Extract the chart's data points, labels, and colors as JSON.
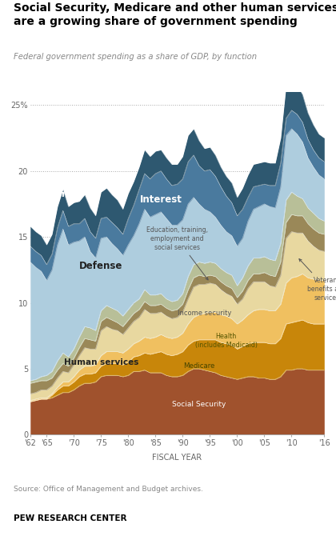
{
  "title": "Social Security, Medicare and other human services\nare a growing share of government spending",
  "subtitle": "Federal government spending as a share of GDP, by function",
  "source": "Source: Office of Management and Budget archives.",
  "footer": "PEW RESEARCH CENTER",
  "xlabel": "FISCAL YEAR",
  "background_color": "#ffffff",
  "years": [
    1962,
    1963,
    1964,
    1965,
    1966,
    1967,
    1968,
    1969,
    1970,
    1971,
    1972,
    1973,
    1974,
    1975,
    1976,
    1977,
    1978,
    1979,
    1980,
    1981,
    1982,
    1983,
    1984,
    1985,
    1986,
    1987,
    1988,
    1989,
    1990,
    1991,
    1992,
    1993,
    1994,
    1995,
    1996,
    1997,
    1998,
    1999,
    2000,
    2001,
    2002,
    2003,
    2004,
    2005,
    2006,
    2007,
    2008,
    2009,
    2010,
    2011,
    2012,
    2013,
    2014,
    2015,
    2016
  ],
  "social_security": [
    2.5,
    2.6,
    2.7,
    2.7,
    2.8,
    3.0,
    3.2,
    3.2,
    3.4,
    3.7,
    3.9,
    3.9,
    4.0,
    4.4,
    4.5,
    4.5,
    4.5,
    4.4,
    4.5,
    4.8,
    4.8,
    4.9,
    4.7,
    4.7,
    4.7,
    4.5,
    4.4,
    4.4,
    4.5,
    4.8,
    5.0,
    5.0,
    4.9,
    4.8,
    4.7,
    4.5,
    4.4,
    4.3,
    4.2,
    4.3,
    4.4,
    4.4,
    4.3,
    4.3,
    4.2,
    4.2,
    4.4,
    4.9,
    4.9,
    5.0,
    5.0,
    4.9,
    4.9,
    4.9,
    4.9
  ],
  "medicare": [
    0.0,
    0.0,
    0.0,
    0.0,
    0.2,
    0.4,
    0.5,
    0.5,
    0.6,
    0.7,
    0.7,
    0.7,
    0.7,
    0.8,
    0.9,
    0.9,
    0.9,
    0.9,
    1.0,
    1.1,
    1.2,
    1.3,
    1.4,
    1.5,
    1.6,
    1.6,
    1.6,
    1.7,
    1.8,
    2.0,
    2.1,
    2.2,
    2.3,
    2.4,
    2.5,
    2.5,
    2.5,
    2.5,
    2.3,
    2.4,
    2.5,
    2.6,
    2.7,
    2.7,
    2.7,
    2.7,
    2.9,
    3.5,
    3.6,
    3.6,
    3.7,
    3.6,
    3.5,
    3.5,
    3.5
  ],
  "health": [
    0.1,
    0.1,
    0.1,
    0.1,
    0.1,
    0.2,
    0.3,
    0.3,
    0.4,
    0.5,
    0.6,
    0.6,
    0.6,
    0.8,
    0.9,
    0.9,
    0.9,
    0.9,
    1.0,
    1.0,
    1.1,
    1.2,
    1.2,
    1.2,
    1.3,
    1.3,
    1.3,
    1.3,
    1.4,
    1.6,
    1.8,
    1.9,
    2.0,
    2.1,
    2.1,
    2.1,
    2.1,
    2.0,
    1.9,
    2.0,
    2.2,
    2.4,
    2.5,
    2.5,
    2.5,
    2.5,
    2.6,
    3.1,
    3.4,
    3.4,
    3.5,
    3.4,
    3.4,
    3.3,
    3.3
  ],
  "income_security": [
    0.5,
    0.5,
    0.6,
    0.6,
    0.6,
    0.7,
    0.8,
    0.7,
    0.9,
    1.1,
    1.4,
    1.3,
    1.2,
    1.9,
    1.9,
    1.7,
    1.6,
    1.4,
    1.6,
    1.7,
    1.8,
    2.1,
    1.9,
    1.8,
    1.7,
    1.6,
    1.5,
    1.5,
    1.6,
    1.9,
    2.3,
    2.3,
    2.2,
    2.2,
    2.1,
    1.9,
    1.7,
    1.7,
    1.5,
    1.6,
    2.0,
    2.2,
    2.1,
    2.1,
    1.9,
    1.8,
    2.2,
    3.4,
    3.5,
    3.3,
    3.1,
    2.8,
    2.5,
    2.3,
    2.2
  ],
  "veterans": [
    0.8,
    0.8,
    0.7,
    0.7,
    0.6,
    0.6,
    0.6,
    0.5,
    0.5,
    0.6,
    0.7,
    0.7,
    0.6,
    0.7,
    0.7,
    0.7,
    0.6,
    0.6,
    0.6,
    0.6,
    0.6,
    0.6,
    0.6,
    0.6,
    0.6,
    0.6,
    0.6,
    0.6,
    0.6,
    0.7,
    0.7,
    0.7,
    0.6,
    0.6,
    0.6,
    0.6,
    0.6,
    0.6,
    0.5,
    0.6,
    0.6,
    0.6,
    0.6,
    0.7,
    0.8,
    0.8,
    1.0,
    1.2,
    1.3,
    1.3,
    1.3,
    1.3,
    1.3,
    1.3,
    1.3
  ],
  "education": [
    0.2,
    0.2,
    0.3,
    0.4,
    0.5,
    0.7,
    0.8,
    0.7,
    0.7,
    0.8,
    0.9,
    0.9,
    0.8,
    0.8,
    0.9,
    0.9,
    0.9,
    0.8,
    0.8,
    0.8,
    0.8,
    0.9,
    0.8,
    0.8,
    0.8,
    0.7,
    0.7,
    0.7,
    0.8,
    1.0,
    1.0,
    1.0,
    1.0,
    1.0,
    1.0,
    1.0,
    1.0,
    1.0,
    0.9,
    1.0,
    1.1,
    1.2,
    1.2,
    1.2,
    1.2,
    1.2,
    1.4,
    1.7,
    1.7,
    1.5,
    1.3,
    1.2,
    1.2,
    1.1,
    1.0
  ],
  "defense": [
    9.0,
    8.5,
    8.0,
    7.2,
    7.7,
    8.8,
    9.4,
    8.5,
    8.1,
    7.3,
    6.8,
    5.8,
    5.5,
    5.5,
    5.2,
    4.9,
    4.7,
    4.6,
    4.9,
    5.1,
    5.7,
    6.1,
    5.9,
    6.1,
    6.2,
    6.1,
    5.8,
    5.7,
    5.6,
    5.5,
    5.1,
    4.4,
    4.1,
    3.8,
    3.5,
    3.3,
    3.1,
    3.0,
    3.0,
    3.0,
    3.4,
    3.7,
    3.9,
    4.0,
    4.0,
    4.0,
    4.3,
    4.9,
    4.8,
    4.7,
    4.3,
    3.8,
    3.5,
    3.3,
    3.2
  ],
  "interest": [
    1.2,
    1.2,
    1.2,
    1.2,
    1.2,
    1.3,
    1.4,
    1.4,
    1.4,
    1.3,
    1.4,
    1.5,
    1.5,
    1.5,
    1.5,
    1.6,
    1.6,
    1.6,
    2.0,
    2.3,
    2.6,
    2.7,
    2.9,
    3.1,
    3.1,
    3.0,
    3.0,
    3.1,
    3.1,
    3.2,
    3.2,
    2.9,
    2.9,
    3.2,
    3.1,
    2.9,
    2.7,
    2.5,
    2.3,
    2.2,
    1.8,
    1.7,
    1.6,
    1.5,
    1.6,
    1.7,
    1.8,
    1.3,
    1.4,
    1.5,
    1.5,
    1.4,
    1.3,
    1.3,
    1.3
  ],
  "other": [
    1.5,
    1.5,
    1.5,
    1.5,
    1.5,
    1.6,
    1.6,
    1.5,
    1.6,
    1.7,
    1.8,
    1.8,
    1.7,
    2.0,
    2.2,
    2.1,
    2.1,
    1.9,
    1.9,
    1.8,
    1.7,
    1.8,
    1.7,
    1.7,
    1.6,
    1.6,
    1.6,
    1.5,
    1.7,
    2.0,
    2.0,
    1.9,
    1.7,
    1.7,
    1.6,
    1.5,
    1.5,
    1.5,
    1.4,
    1.6,
    1.7,
    1.7,
    1.7,
    1.7,
    1.7,
    1.7,
    1.9,
    2.5,
    2.3,
    2.2,
    2.1,
    2.0,
    1.9,
    1.8,
    1.8
  ],
  "colors": {
    "social_security": "#A0522D",
    "medicare": "#C8860A",
    "health": "#F0C060",
    "income_security": "#E8D8A0",
    "veterans": "#9A8858",
    "education": "#B8BF98",
    "defense": "#AECDDE",
    "interest": "#4A7A9E",
    "other": "#2E5870"
  },
  "xticks": [
    1962,
    1965,
    1970,
    1975,
    1980,
    1985,
    1990,
    1995,
    2000,
    2005,
    2010,
    2016
  ],
  "xtick_labels": [
    "'62",
    "'65",
    "'70",
    "'75",
    "'80",
    "'85",
    "'90",
    "'95",
    "'00",
    "'05",
    "'10",
    "'16"
  ],
  "yticks": [
    0,
    5,
    10,
    15,
    20,
    25
  ],
  "ylim": [
    0,
    26
  ]
}
